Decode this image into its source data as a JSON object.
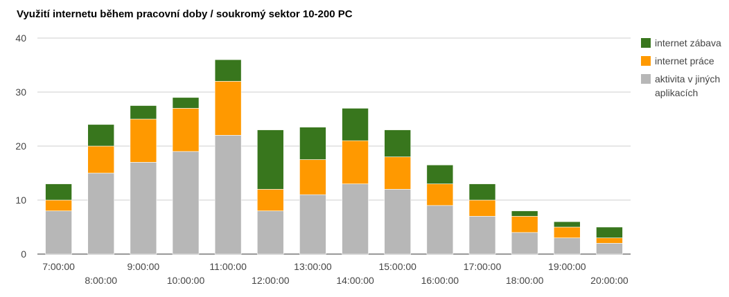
{
  "chart_data": {
    "type": "bar",
    "stacked": true,
    "title": "Využití internetu během pracovní doby / soukromý sektor 10-200 PC",
    "xlabel": "",
    "ylabel": "",
    "ylim": [
      0,
      40
    ],
    "yticks": [
      0,
      10,
      20,
      30,
      40
    ],
    "grid": true,
    "legend_position": "right",
    "categories": [
      "7:00:00",
      "8:00:00",
      "9:00:00",
      "10:00:00",
      "11:00:00",
      "12:00:00",
      "13:00:00",
      "14:00:00",
      "15:00:00",
      "16:00:00",
      "17:00:00",
      "18:00:00",
      "19:00:00",
      "20:00:00"
    ],
    "series": [
      {
        "name": "aktivita v jiných aplikacích",
        "color": "#b7b7b7",
        "values": [
          8,
          15,
          17,
          19,
          22,
          8,
          11,
          13,
          12,
          9,
          7,
          4,
          3,
          2
        ]
      },
      {
        "name": "internet práce",
        "color": "#ff9900",
        "values": [
          2,
          5,
          8,
          8,
          10,
          4,
          6.5,
          8,
          6,
          4,
          3,
          3,
          2,
          1
        ]
      },
      {
        "name": "internet zábava",
        "color": "#38761d",
        "values": [
          3,
          4,
          2.5,
          2,
          4,
          11,
          6,
          6,
          5,
          3.5,
          3,
          1,
          1,
          2
        ]
      }
    ],
    "legend_order": [
      "internet zábava",
      "internet práce",
      "aktivita v jiných aplikacích"
    ]
  }
}
